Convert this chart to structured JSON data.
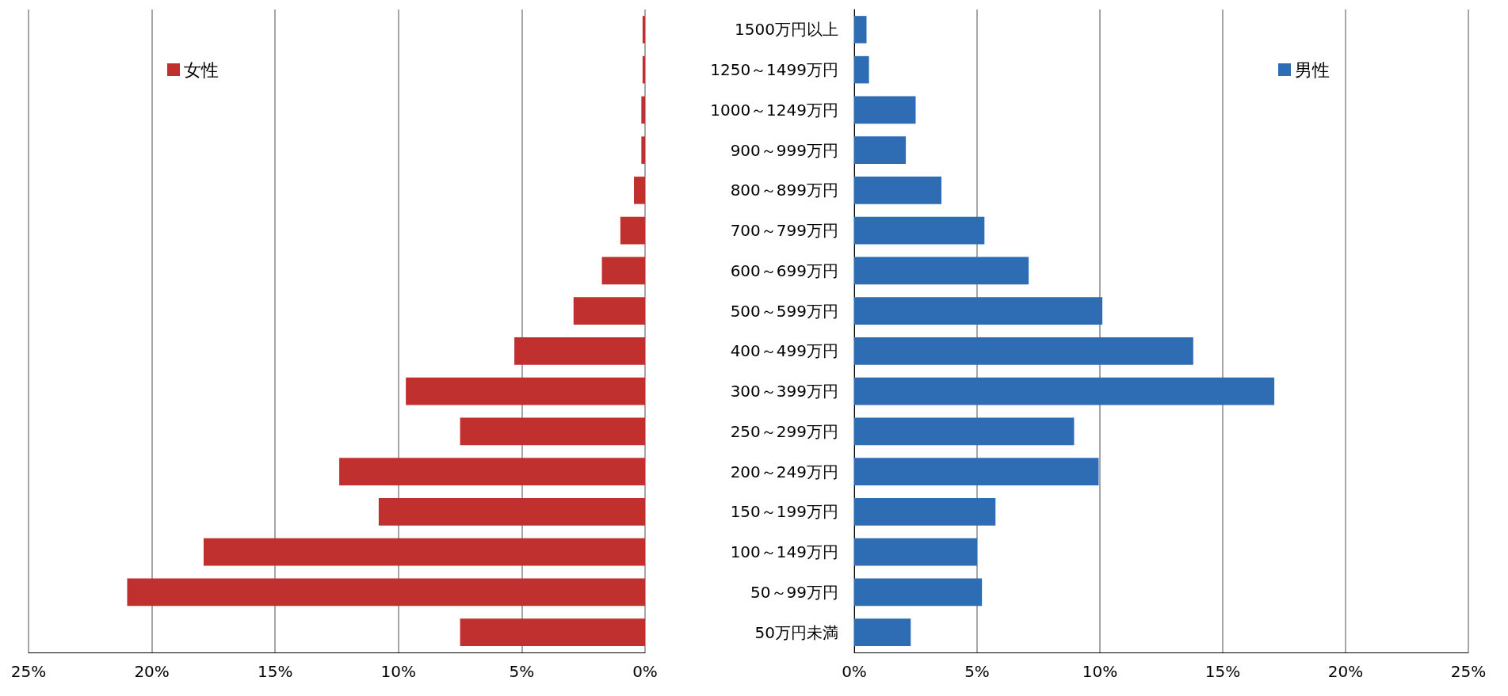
{
  "chart_data": [
    {
      "type": "bar",
      "orientation": "horizontal",
      "categories": [
        null,
        null,
        null,
        null,
        null,
        null,
        null,
        null,
        null,
        null,
        null,
        null,
        null,
        null,
        null,
        null
      ],
      "series": [
        {
          "name": "女性",
          "color": "#c0302f",
          "values": [
            0.1,
            0.1,
            0.15,
            0.15,
            0.45,
            1.0,
            1.75,
            2.9,
            5.3,
            9.7,
            7.5,
            12.4,
            10.8,
            17.9,
            21.0,
            7.5
          ]
        }
      ],
      "xlim": [
        25,
        0
      ],
      "xticks": [
        {
          "value": 25,
          "label": "25%"
        },
        {
          "value": 20,
          "label": "20%"
        },
        {
          "value": 15,
          "label": "15%"
        },
        {
          "value": 10,
          "label": "10%"
        },
        {
          "value": 5,
          "label": "5%"
        },
        {
          "value": 0,
          "label": "0%"
        }
      ],
      "grid": "x",
      "legend": "top left"
    },
    {
      "type": "bar",
      "orientation": "horizontal",
      "categories": [
        "1500万円以上",
        "1250～1499万円",
        "1000～1249万円",
        "900～999万円",
        "800～899万円",
        "700～799万円",
        "600～699万円",
        "500～599万円",
        "400～499万円",
        "300～399万円",
        "250～299万円",
        "200～249万円",
        "150～199万円",
        "100～149万円",
        "50～99万円",
        "50万円未満"
      ],
      "series": [
        {
          "name": "男性",
          "color": "#2e6db4",
          "values": [
            0.5,
            0.6,
            2.5,
            2.1,
            3.55,
            5.3,
            7.1,
            10.1,
            13.8,
            17.1,
            8.95,
            9.95,
            5.75,
            5.0,
            5.2,
            2.3
          ]
        }
      ],
      "xlim": [
        0,
        25
      ],
      "xticks": [
        {
          "value": 0,
          "label": "0%"
        },
        {
          "value": 5,
          "label": "5%"
        },
        {
          "value": 10,
          "label": "10%"
        },
        {
          "value": 15,
          "label": "15%"
        },
        {
          "value": 20,
          "label": "20%"
        },
        {
          "value": 25,
          "label": "25%"
        }
      ],
      "grid": "x",
      "legend": "top right"
    }
  ]
}
